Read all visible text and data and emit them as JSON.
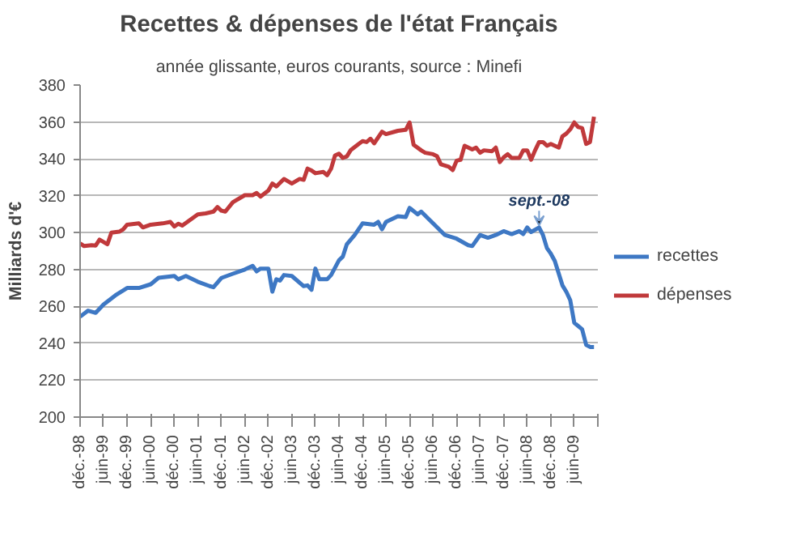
{
  "chart_data": {
    "type": "line",
    "title": "Recettes & dépenses de l'état Français",
    "subtitle": "année glissante, euros courants, source : Minefi",
    "ylabel": "Milliards d'€",
    "xlim": [
      "1998-12",
      "2009-12"
    ],
    "ylim": [
      200,
      380
    ],
    "yticks": [
      200,
      220,
      240,
      260,
      280,
      300,
      320,
      340,
      360,
      380
    ],
    "xticks": [
      {
        "value": "1998-12",
        "label": "déc.-98"
      },
      {
        "value": "1999-06",
        "label": "juin-99"
      },
      {
        "value": "1999-12",
        "label": "déc.-99"
      },
      {
        "value": "2000-06",
        "label": "juin-00"
      },
      {
        "value": "2000-12",
        "label": "déc.-00"
      },
      {
        "value": "2001-06",
        "label": "juin-01"
      },
      {
        "value": "2001-12",
        "label": "déc.-01"
      },
      {
        "value": "2002-06",
        "label": "juin-02"
      },
      {
        "value": "2002-12",
        "label": "déc.-02"
      },
      {
        "value": "2003-06",
        "label": "juin-03"
      },
      {
        "value": "2003-12",
        "label": "déc.-03"
      },
      {
        "value": "2004-06",
        "label": "juin-04"
      },
      {
        "value": "2004-12",
        "label": "déc.-04"
      },
      {
        "value": "2005-06",
        "label": "juin-05"
      },
      {
        "value": "2005-12",
        "label": "déc.-05"
      },
      {
        "value": "2006-06",
        "label": "juin-06"
      },
      {
        "value": "2006-12",
        "label": "déc.-06"
      },
      {
        "value": "2007-06",
        "label": "juin-07"
      },
      {
        "value": "2007-12",
        "label": "déc.-07"
      },
      {
        "value": "2008-06",
        "label": "juin-08"
      },
      {
        "value": "2008-12",
        "label": "déc.-08"
      },
      {
        "value": "2009-06",
        "label": "juin-09"
      },
      {
        "value": "2009-12",
        "label": null
      }
    ],
    "grid": "y",
    "legend": "right",
    "marker": "none",
    "line_style": "solid",
    "annotations": [
      {
        "text": "sept.-08",
        "x": "2008-09",
        "y": 302.8
      }
    ],
    "series": [
      {
        "name": "recettes",
        "color": "#3e78c4",
        "x": [
          "1998-12",
          "1999-02",
          "1999-04",
          "1999-06",
          "1999-09",
          "1999-12",
          "2000-03",
          "2000-06",
          "2000-08",
          "2000-12",
          "2001-01",
          "2001-03",
          "2001-06",
          "2001-09",
          "2001-10",
          "2001-12",
          "2002-03",
          "2002-06",
          "2002-08",
          "2002-09",
          "2002-10",
          "2002-12",
          "2003-01",
          "2003-02",
          "2003-03",
          "2003-04",
          "2003-06",
          "2003-09",
          "2003-10",
          "2003-11",
          "2003-12",
          "2004-01",
          "2004-03",
          "2004-04",
          "2004-06",
          "2004-07",
          "2004-08",
          "2004-10",
          "2004-12",
          "2005-03",
          "2005-04",
          "2005-05",
          "2005-06",
          "2005-09",
          "2005-11",
          "2005-12",
          "2006-02",
          "2006-03",
          "2006-06",
          "2006-09",
          "2006-12",
          "2007-03",
          "2007-04",
          "2007-06",
          "2007-08",
          "2007-10",
          "2007-12",
          "2008-02",
          "2008-04",
          "2008-05",
          "2008-06",
          "2008-07",
          "2008-09",
          "2008-10",
          "2008-11",
          "2008-12",
          "2009-01",
          "2009-03",
          "2009-04",
          "2009-05",
          "2009-06",
          "2009-07",
          "2009-08",
          "2009-09",
          "2009-10",
          "2009-11"
        ],
        "values": [
          254.4,
          257.7,
          256.5,
          261,
          266,
          270,
          270,
          272,
          275.5,
          276.5,
          274.7,
          276.5,
          273.4,
          271,
          270.4,
          275.4,
          277.7,
          280,
          282,
          279,
          280.5,
          280.5,
          268,
          274.7,
          274,
          277,
          276.5,
          271,
          271.4,
          269,
          280.5,
          274.7,
          274.7,
          277,
          285,
          287,
          293.7,
          298.7,
          305,
          304.3,
          305.8,
          301.8,
          305.8,
          308.9,
          308.4,
          313.4,
          309.9,
          311.4,
          305,
          298.7,
          296.7,
          293.2,
          292.7,
          298.7,
          297.2,
          298.7,
          300.8,
          299.2,
          300.8,
          299.2,
          302.8,
          300.3,
          302.8,
          298.7,
          291.6,
          288.6,
          284.6,
          271.4,
          267.8,
          263.3,
          251.1,
          249.4,
          247.6,
          239.2,
          238,
          238
        ]
      },
      {
        "name": "dépenses",
        "color": "#c0393b",
        "x": [
          "1998-12",
          "1999-01",
          "1999-03",
          "1999-04",
          "1999-05",
          "1999-07",
          "1999-08",
          "1999-10",
          "1999-11",
          "1999-12",
          "2000-03",
          "2000-04",
          "2000-06",
          "2000-09",
          "2000-11",
          "2000-12",
          "2001-01",
          "2001-02",
          "2001-04",
          "2001-06",
          "2001-08",
          "2001-10",
          "2001-11",
          "2001-12",
          "2002-01",
          "2002-03",
          "2002-06",
          "2002-08",
          "2002-09",
          "2002-10",
          "2002-12",
          "2003-01",
          "2003-02",
          "2003-04",
          "2003-06",
          "2003-08",
          "2003-09",
          "2003-10",
          "2003-11",
          "2003-12",
          "2004-02",
          "2004-03",
          "2004-04",
          "2004-05",
          "2004-06",
          "2004-07",
          "2004-08",
          "2004-09",
          "2004-11",
          "2004-12",
          "2005-01",
          "2005-02",
          "2005-03",
          "2005-05",
          "2005-06",
          "2005-09",
          "2005-11",
          "2005-12",
          "2006-01",
          "2006-03",
          "2006-04",
          "2006-06",
          "2006-07",
          "2006-08",
          "2006-10",
          "2006-11",
          "2006-12",
          "2007-01",
          "2007-02",
          "2007-04",
          "2007-05",
          "2007-06",
          "2007-07",
          "2007-09",
          "2007-10",
          "2007-11",
          "2007-12",
          "2008-01",
          "2008-02",
          "2008-04",
          "2008-05",
          "2008-06",
          "2008-07",
          "2008-08",
          "2008-09",
          "2008-10",
          "2008-11",
          "2008-12",
          "2009-01",
          "2009-02",
          "2009-03",
          "2009-04",
          "2009-05",
          "2009-06",
          "2009-07",
          "2009-08",
          "2009-09",
          "2009-10",
          "2009-11"
        ],
        "values": [
          294.2,
          292.7,
          293.2,
          293,
          296.2,
          293.7,
          300,
          300.5,
          301.8,
          304.3,
          305,
          302.8,
          304.3,
          305,
          305.8,
          303.3,
          304.8,
          303.8,
          306.8,
          309.9,
          310.4,
          311.4,
          313.9,
          311.9,
          311.4,
          316.5,
          320.3,
          320.3,
          321.5,
          319.5,
          322.8,
          326.6,
          325,
          329.1,
          326.6,
          329.1,
          328.6,
          334.7,
          333.7,
          332.2,
          332.9,
          331.1,
          334.7,
          341.8,
          342.8,
          340.5,
          341.3,
          344.8,
          348.1,
          349.6,
          349.1,
          350.9,
          348.4,
          354.7,
          353.4,
          355.2,
          355.7,
          359.7,
          347.6,
          344.6,
          343.3,
          342.5,
          341.5,
          337,
          335.7,
          333.9,
          339,
          339.5,
          347.1,
          345.1,
          346.1,
          343.3,
          344.6,
          344.1,
          346.1,
          338.2,
          340.8,
          342.5,
          340.5,
          340.5,
          344.6,
          344.6,
          339.5,
          344.6,
          349.1,
          349.1,
          347.1,
          348.1,
          347.1,
          346.1,
          352.2,
          353.7,
          356,
          359.7,
          357.2,
          356.7,
          348.1,
          349.1,
          362.8
        ]
      }
    ]
  }
}
